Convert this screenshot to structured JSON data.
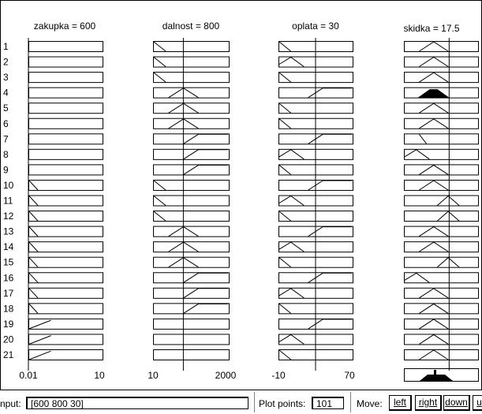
{
  "variables": [
    {
      "title": "zakupka = 600",
      "axis_min": "0.01",
      "axis_max": "10"
    },
    {
      "title": "dalnost = 800",
      "axis_min": "10",
      "axis_max": "2000"
    },
    {
      "title": "oplata = 30",
      "axis_min": "-10",
      "axis_max": "70"
    },
    {
      "title": "skidka = 17.5",
      "axis_min": "",
      "axis_max": ""
    }
  ],
  "rules": [
    {
      "mf": [
        null,
        "low",
        "low",
        "mid"
      ]
    },
    {
      "mf": [
        null,
        "low",
        "midlow",
        "mid"
      ]
    },
    {
      "mf": [
        null,
        "low",
        "low",
        "mid"
      ]
    },
    {
      "mf": [
        null,
        "mid",
        "high",
        "mid"
      ],
      "fill3": "mid"
    },
    {
      "mf": [
        null,
        "mid",
        "low",
        "mid"
      ]
    },
    {
      "mf": [
        null,
        "mid",
        "low",
        "mid"
      ]
    },
    {
      "mf": [
        null,
        "high",
        "high",
        "lowmid"
      ]
    },
    {
      "mf": [
        null,
        "high",
        "midlow",
        "midlow"
      ]
    },
    {
      "mf": [
        null,
        "high",
        "low",
        "mid"
      ]
    },
    {
      "mf": [
        "low",
        "low",
        "high",
        "mid"
      ]
    },
    {
      "mf": [
        "low",
        "low",
        "midlow",
        "midhigh"
      ]
    },
    {
      "mf": [
        "low",
        "low",
        "low",
        "midhigh"
      ]
    },
    {
      "mf": [
        "low",
        "mid",
        "high",
        "mid"
      ]
    },
    {
      "mf": [
        "low",
        "mid",
        "midlow",
        "mid"
      ]
    },
    {
      "mf": [
        "low",
        "mid",
        "low",
        "midhigh"
      ]
    },
    {
      "mf": [
        "low",
        "high",
        "high",
        "midlow"
      ]
    },
    {
      "mf": [
        "low",
        "high",
        "midlow",
        "mid"
      ]
    },
    {
      "mf": [
        "low",
        "high",
        "low",
        "mid"
      ]
    },
    {
      "mf": [
        "mid",
        null,
        "high",
        "mid"
      ]
    },
    {
      "mf": [
        "mid",
        null,
        "midlow",
        "mid"
      ]
    },
    {
      "mf": [
        "mid",
        null,
        "low",
        "mid"
      ]
    }
  ],
  "inputs": {
    "zakupka": 600,
    "dalnost": 800,
    "oplata": 30
  },
  "output_value": 17.5,
  "bottom": {
    "input_label": "nput:",
    "input_value": "[600 800 30]",
    "plot_points_label": "Plot points:",
    "plot_points_value": "101",
    "move_label": "Move:",
    "btn_left": "left",
    "btn_right": "right",
    "btn_down": "down",
    "btn_up": "u"
  }
}
